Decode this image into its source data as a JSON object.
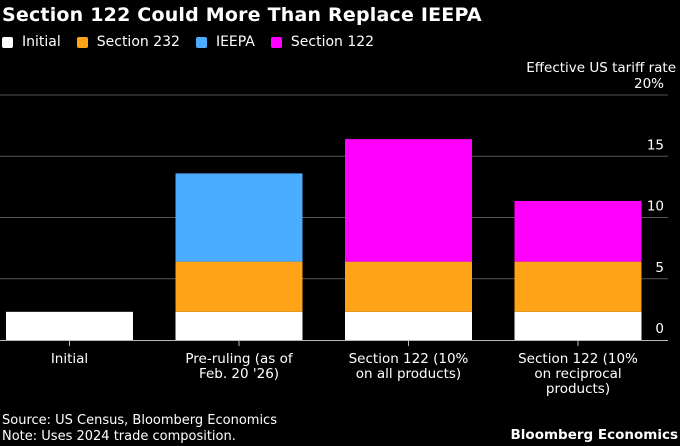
{
  "chart_data": {
    "type": "bar",
    "stacked": true,
    "title": "Section 122 Could More Than Replace IEEPA",
    "ylabel": "Effective US tariff rate",
    "xlabel": "",
    "ylim": [
      0,
      20
    ],
    "yticks": [
      0,
      5,
      10,
      15,
      20
    ],
    "ytick_labels": [
      "0",
      "5",
      "10",
      "15",
      "20%"
    ],
    "grid": true,
    "legend_position": "top-left",
    "categories": [
      [
        "Initial"
      ],
      [
        "Pre-ruling (as of",
        "Feb. 20 '26)"
      ],
      [
        "Section 122 (10%",
        "on all products)"
      ],
      [
        "Section 122 (10%",
        "on reciprocal",
        "products)"
      ]
    ],
    "series": [
      {
        "name": "Initial",
        "color": "#ffffff",
        "values": [
          2.3,
          2.3,
          2.3,
          2.3
        ]
      },
      {
        "name": "Section 232",
        "color": "#ffa319",
        "values": [
          0,
          4.1,
          4.1,
          4.1
        ]
      },
      {
        "name": "IEEPA",
        "color": "#4aadff",
        "values": [
          0,
          7.2,
          0,
          0
        ]
      },
      {
        "name": "Section 122",
        "color": "#ff00ff",
        "values": [
          0,
          0,
          10.0,
          4.95
        ]
      }
    ]
  },
  "footer": {
    "source": "Source: US Census, Bloomberg Economics",
    "note": "Note: Uses 2024 trade composition.",
    "brand": "Bloomberg Economics"
  }
}
